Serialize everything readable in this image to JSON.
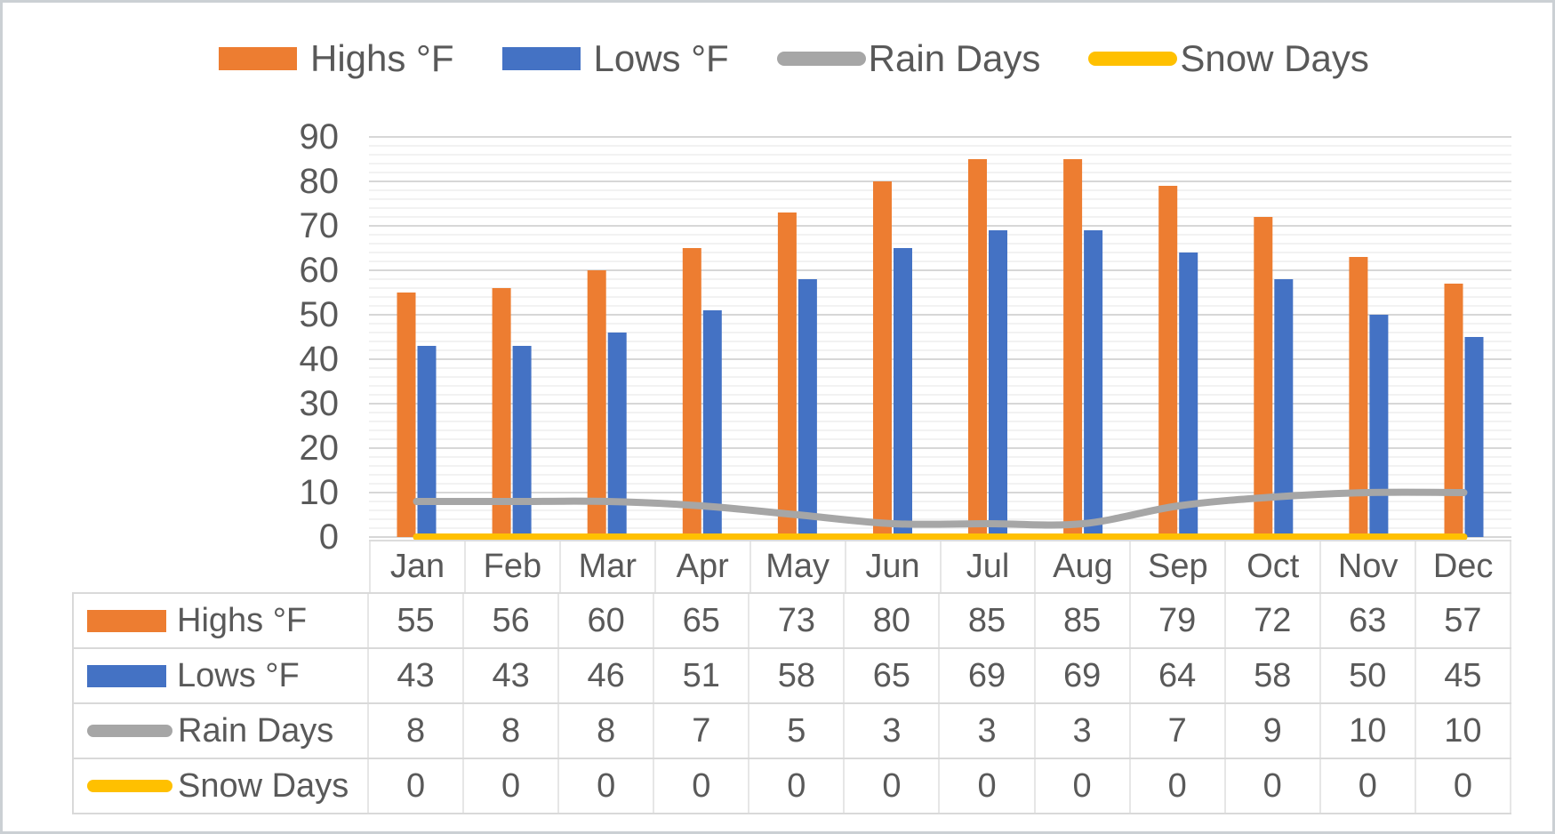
{
  "legend": {
    "items": [
      {
        "label": "Highs °F",
        "color": "#ED7D31",
        "shape": "rect"
      },
      {
        "label": "Lows °F",
        "color": "#4472C4",
        "shape": "rect"
      },
      {
        "label": "Rain Days",
        "color": "#A6A6A6",
        "shape": "line"
      },
      {
        "label": "Snow Days",
        "color": "#FFC000",
        "shape": "line"
      }
    ]
  },
  "chart_data": {
    "type": "combo-bar-line",
    "title": "",
    "categories": [
      "Jan",
      "Feb",
      "Mar",
      "Apr",
      "May",
      "Jun",
      "Jul",
      "Aug",
      "Sep",
      "Oct",
      "Nov",
      "Dec"
    ],
    "series": [
      {
        "name": "Highs °F",
        "chart_type": "bar",
        "color": "#ED7D31",
        "values": [
          55,
          56,
          60,
          65,
          73,
          80,
          85,
          85,
          79,
          72,
          63,
          57
        ]
      },
      {
        "name": "Lows °F",
        "chart_type": "bar",
        "color": "#4472C4",
        "values": [
          43,
          43,
          46,
          51,
          58,
          65,
          69,
          69,
          64,
          58,
          50,
          45
        ]
      },
      {
        "name": "Rain Days",
        "chart_type": "line",
        "color": "#A6A6A6",
        "smooth": true,
        "values": [
          8,
          8,
          8,
          7,
          5,
          3,
          3,
          3,
          7,
          9,
          10,
          10
        ]
      },
      {
        "name": "Snow Days",
        "chart_type": "line",
        "color": "#FFC000",
        "smooth": true,
        "values": [
          0,
          0,
          0,
          0,
          0,
          0,
          0,
          0,
          0,
          0,
          0,
          0
        ]
      }
    ],
    "y_axis": {
      "min": 0,
      "max": 90,
      "major_unit": 10,
      "minor_unit": 2,
      "tick_labels": [
        "0",
        "10",
        "20",
        "30",
        "40",
        "50",
        "60",
        "70",
        "80",
        "90"
      ]
    },
    "gridlines": {
      "major": true,
      "minor": true,
      "major_color": "#D7D7D7",
      "minor_color": "#F2F2F2"
    },
    "legend_position": "top",
    "has_data_table": true,
    "text_color": "#595959"
  }
}
